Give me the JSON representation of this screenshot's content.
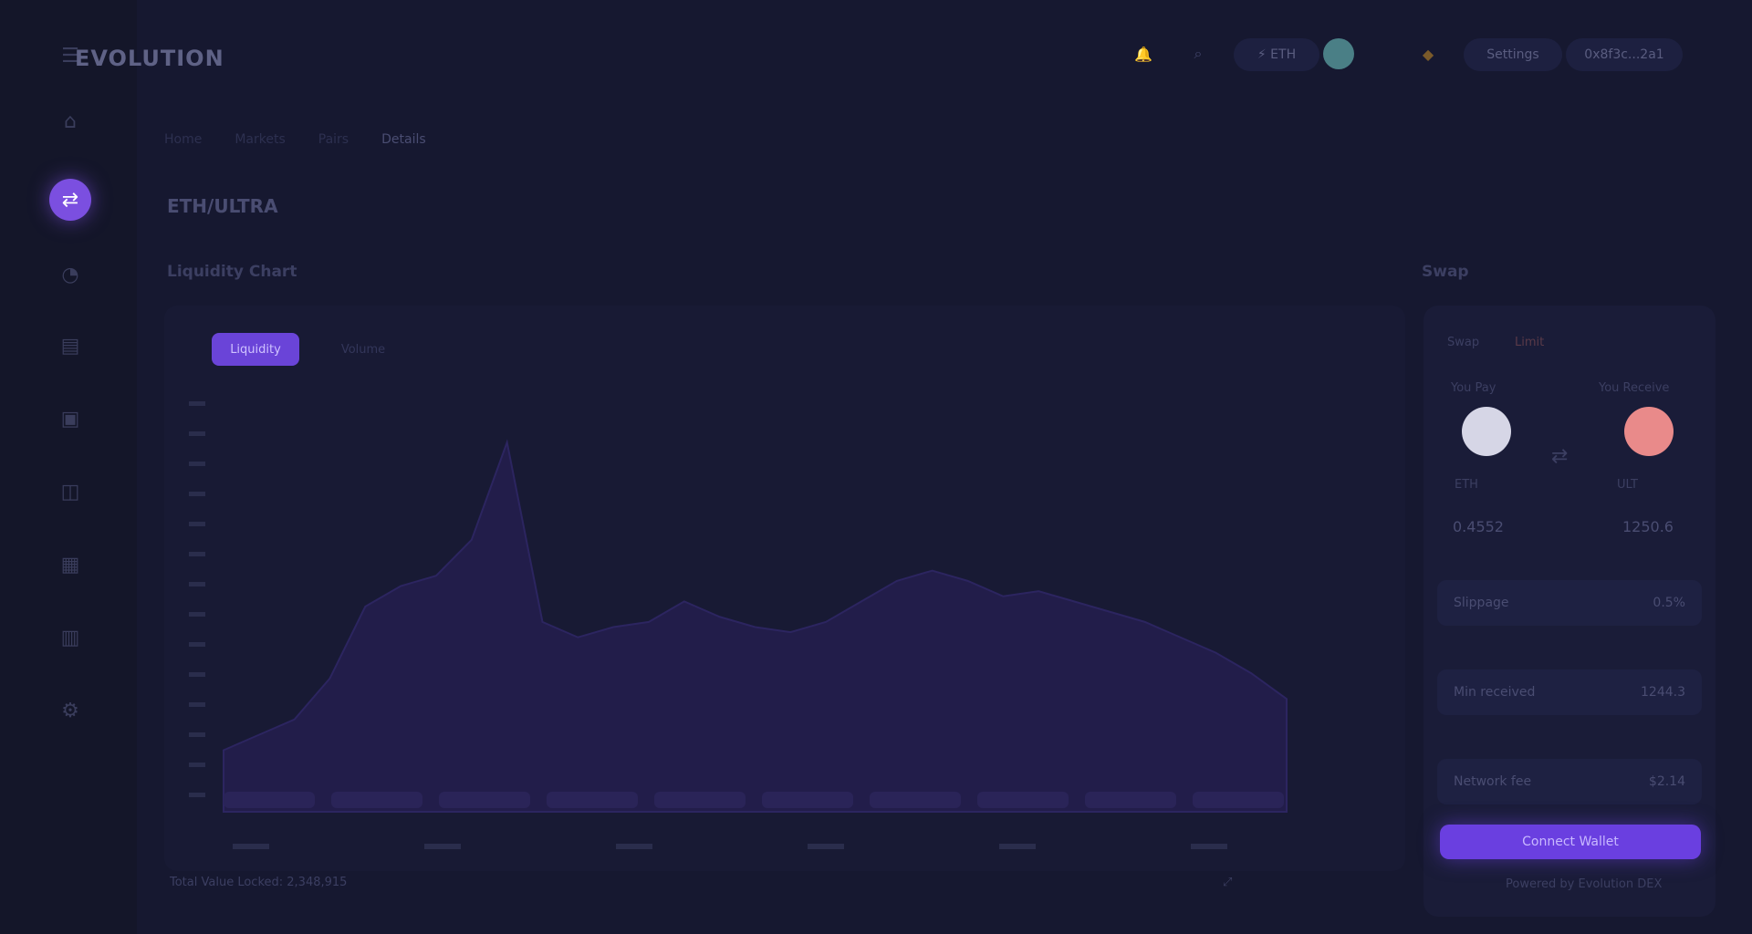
{
  "app": {
    "logo_text": "EVOLUTION"
  },
  "header": {
    "pill_network": "⚡ ETH",
    "pill_settings": "Settings",
    "pill_wallet": "0x8f3c...2a1",
    "accent": "#7b4fe0"
  },
  "breadcrumb": {
    "items": [
      "Home",
      "Markets",
      "Pairs",
      "Details"
    ]
  },
  "page": {
    "title": "ETH/ULTRA",
    "chart_section": "Liquidity Chart",
    "swap_section": "Swap"
  },
  "chart_tabs": {
    "tab1": "Liquidity",
    "tab2": "Volume"
  },
  "chart_footer": "Total Value Locked: 2,348,915",
  "swap": {
    "tab_swap": "Swap",
    "tab_limit": "Limit",
    "from_label": "You Pay",
    "to_label": "You Receive",
    "from_symbol": "ETH",
    "to_symbol": "ULT",
    "from_amount": "0.4552",
    "to_amount": "1250.6",
    "slippage_label": "Slippage",
    "slippage_value": "0.5%",
    "min_label": "Min received",
    "min_value": "1244.3",
    "fee_label": "Network fee",
    "fee_value": "$2.14",
    "button": "Connect Wallet",
    "note": "Powered by Evolution DEX",
    "from_color": "#d6d6e6",
    "to_color": "#e98a8a"
  },
  "chart_data": {
    "type": "area",
    "x": [
      0,
      1,
      2,
      3,
      4,
      5,
      6,
      7,
      8,
      9,
      10,
      11,
      12,
      13,
      14,
      15,
      16,
      17,
      18,
      19,
      20,
      21,
      22,
      23,
      24,
      25,
      26,
      27,
      28,
      29,
      30
    ],
    "values": [
      12,
      15,
      18,
      26,
      40,
      44,
      46,
      53,
      72,
      37,
      34,
      36,
      37,
      41,
      38,
      36,
      35,
      37,
      41,
      45,
      47,
      45,
      42,
      43,
      41,
      39,
      37,
      34,
      31,
      27,
      22
    ],
    "ylim": [
      0,
      80
    ],
    "x_ticks": [
      "",
      "",
      "",
      "",
      "",
      ""
    ],
    "grid": false
  }
}
